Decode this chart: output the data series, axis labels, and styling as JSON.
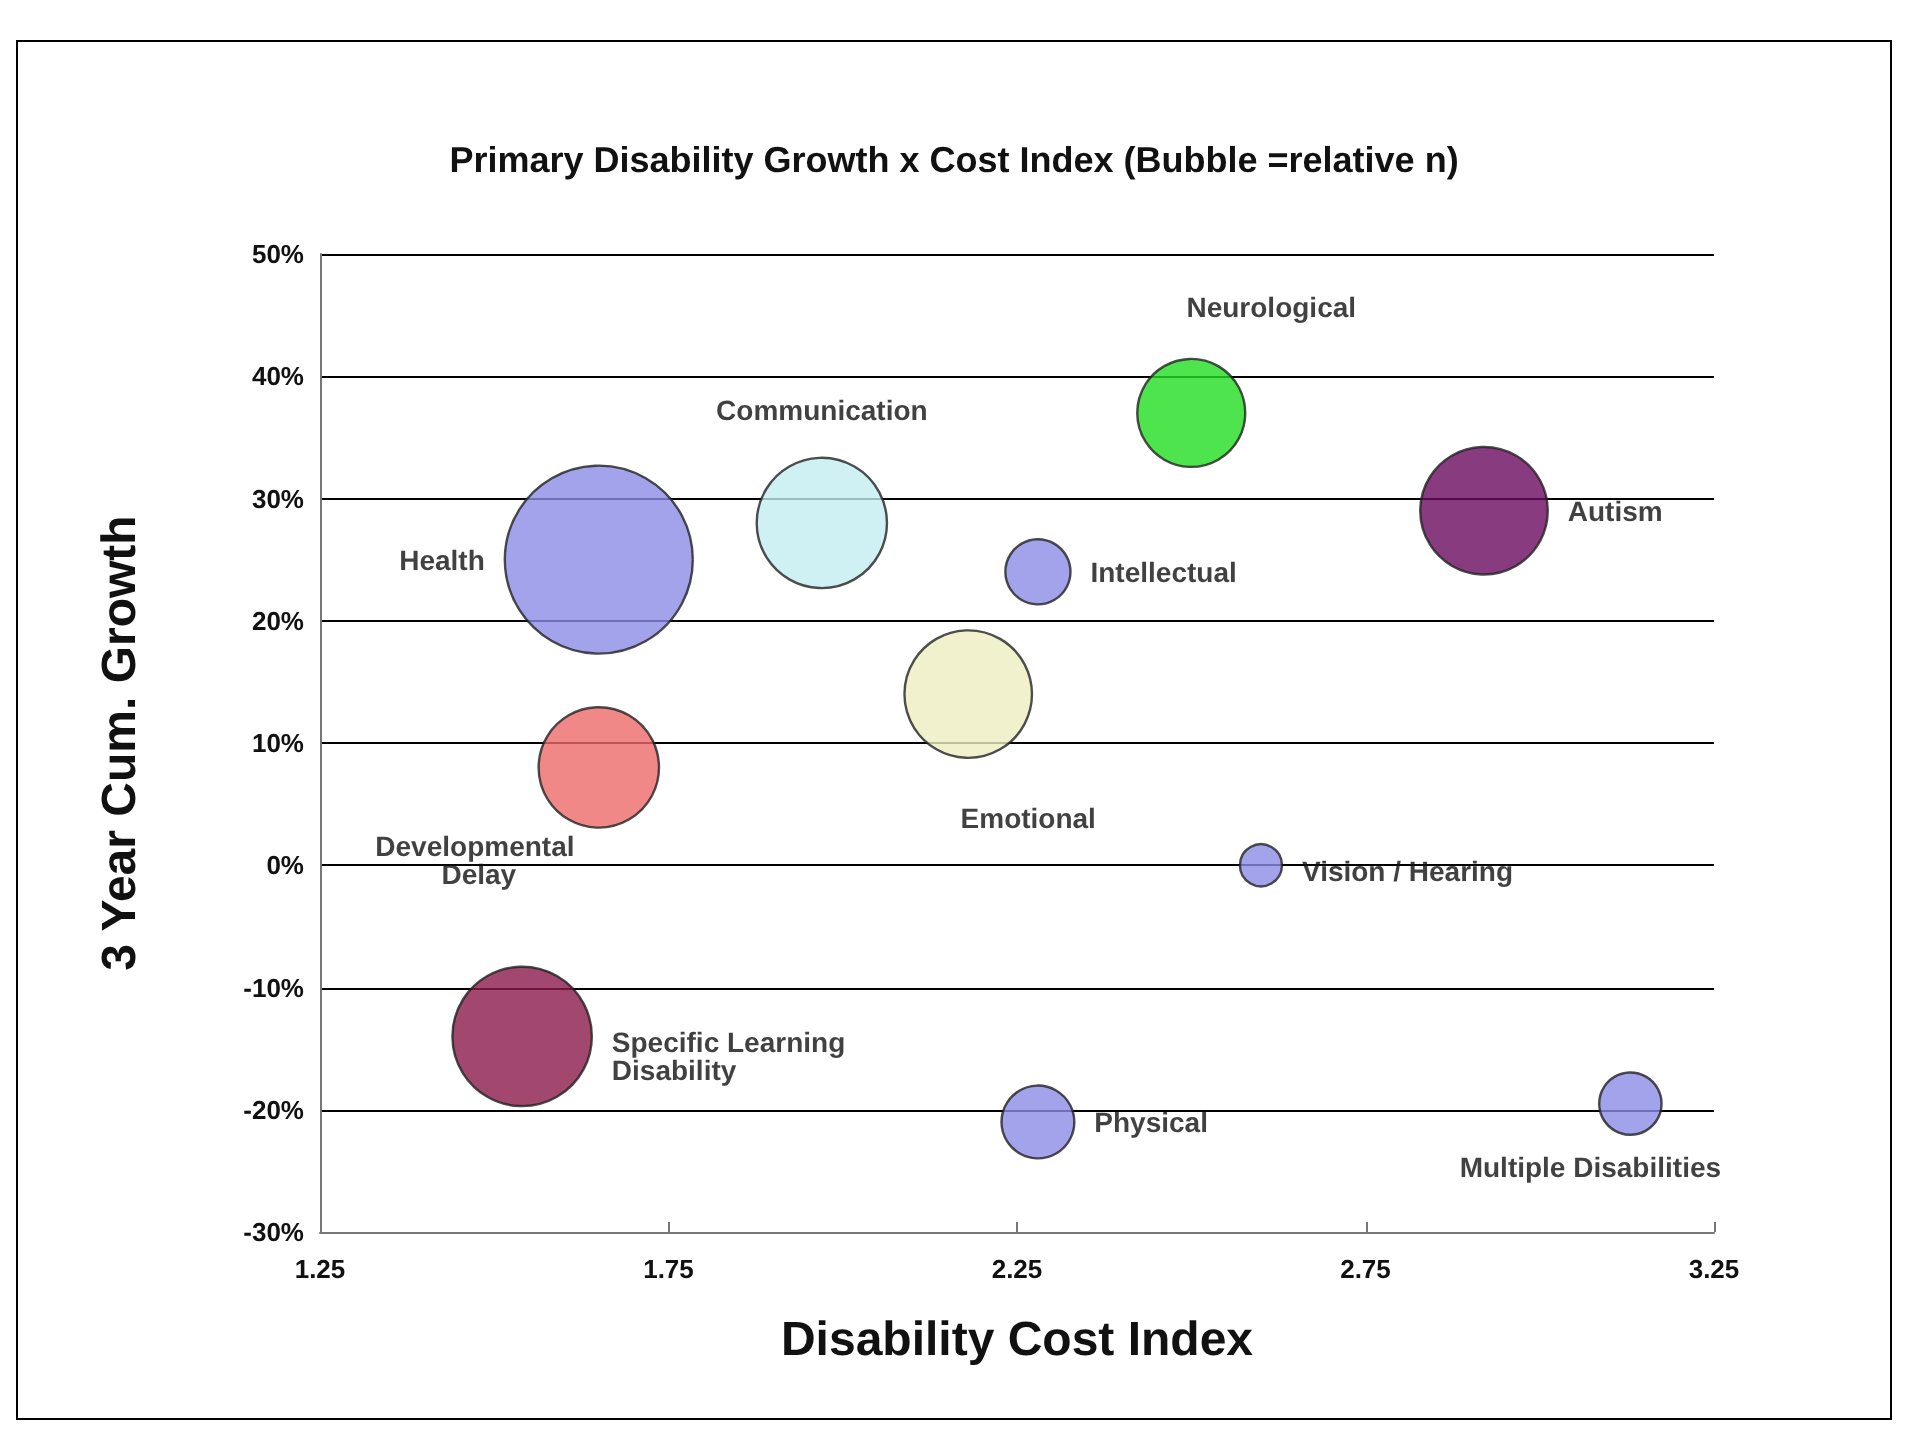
{
  "chart_data": {
    "type": "bubble",
    "title": "Primary Disability Growth x Cost Index (Bubble =relative n)",
    "xlabel": "Disability Cost Index",
    "ylabel": "3 Year Cum. Growth",
    "xlim": [
      1.25,
      3.25
    ],
    "xticks": [
      1.25,
      1.75,
      2.25,
      2.75,
      3.25
    ],
    "ylim": [
      -30,
      50
    ],
    "yticks": [
      {
        "value": -30,
        "label": "-30%"
      },
      {
        "value": -20,
        "label": "-20%"
      },
      {
        "value": -10,
        "label": "-10%"
      },
      {
        "value": 0,
        "label": "0%"
      },
      {
        "value": 10,
        "label": "10%"
      },
      {
        "value": 20,
        "label": "20%"
      },
      {
        "value": 30,
        "label": "30%"
      },
      {
        "value": 40,
        "label": "40%"
      },
      {
        "value": 50,
        "label": "50%"
      }
    ],
    "grid": "y",
    "legend": false,
    "series": [
      {
        "name": "Health",
        "color": "#8c8ce6",
        "x": [
          1.65
        ],
        "values": [
          25
        ],
        "sizes": [
          1
        ]
      },
      {
        "name": "Communication",
        "color": "#c4eef0",
        "x": [
          1.97
        ],
        "values": [
          28
        ],
        "sizes": [
          0.48
        ]
      },
      {
        "name": "Neurological",
        "color": "#22dd22",
        "x": [
          2.5
        ],
        "values": [
          37
        ],
        "sizes": [
          0.33
        ]
      },
      {
        "name": "Autism",
        "color": "#6b0a60",
        "x": [
          2.92
        ],
        "values": [
          29
        ],
        "sizes": [
          0.46
        ]
      },
      {
        "name": "Intellectual",
        "color": "#8c8ce6",
        "x": [
          2.28
        ],
        "values": [
          24
        ],
        "sizes": [
          0.12
        ]
      },
      {
        "name": "Emotional",
        "color": "#eeeec0",
        "x": [
          2.18
        ],
        "values": [
          14
        ],
        "sizes": [
          0.46
        ]
      },
      {
        "name": "Developmental Delay",
        "color": "#ee6a6a",
        "x": [
          1.65
        ],
        "values": [
          8
        ],
        "sizes": [
          0.41
        ]
      },
      {
        "name": "Vision / Hearing",
        "color": "#8c8ce6",
        "x": [
          2.6
        ],
        "values": [
          0
        ],
        "sizes": [
          0.05
        ]
      },
      {
        "name": "Specific Learning Disability",
        "color": "#8b1a4a",
        "x": [
          1.54
        ],
        "values": [
          -14
        ],
        "sizes": [
          0.55
        ]
      },
      {
        "name": "Physical",
        "color": "#8c8ce6",
        "x": [
          2.28
        ],
        "values": [
          -21
        ],
        "sizes": [
          0.15
        ]
      },
      {
        "name": "Multiple Disabilities",
        "color": "#8c8ce6",
        "x": [
          3.13
        ],
        "values": [
          -19.5
        ],
        "sizes": [
          0.11
        ]
      }
    ]
  }
}
